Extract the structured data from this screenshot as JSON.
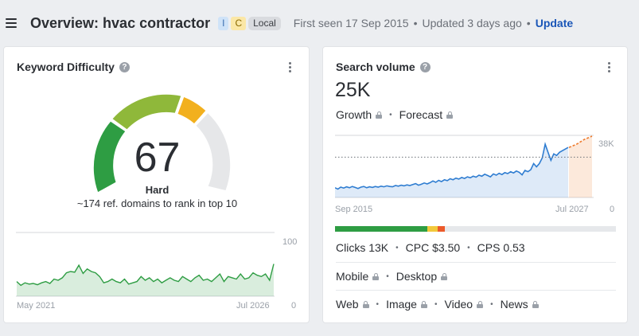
{
  "header": {
    "title": "Overview: hvac contractor",
    "badges": [
      "I",
      "C",
      "Local"
    ],
    "first_seen": "First seen 17 Sep 2015",
    "updated": "Updated 3 days ago",
    "update_label": "Update"
  },
  "kd_card": {
    "title": "Keyword Difficulty",
    "value": "67",
    "rating": "Hard",
    "subtitle": "~174 ref. domains to rank in top 10",
    "gauge_fraction": 0.67,
    "colors": [
      "#2e9d43",
      "#8fb83a",
      "#f2b01e",
      "#e6e7e9"
    ]
  },
  "sv_card": {
    "title": "Search volume",
    "value": "25K",
    "growth_label": "Growth",
    "forecast_label": "Forecast",
    "metrics": [
      "Clicks 13K",
      "CPC $3.50",
      "CPS 0.53"
    ],
    "devices": [
      "Mobile",
      "Desktop"
    ],
    "serp_types": [
      "Web",
      "Image",
      "Video",
      "News"
    ],
    "clicks_bar": [
      {
        "color": "#2e9d43",
        "fraction": 0.33
      },
      {
        "color": "#f2c93b",
        "fraction": 0.035
      },
      {
        "color": "#ec5a2a",
        "fraction": 0.025
      },
      {
        "color": "#e6e8eb",
        "fraction": 0.61
      }
    ]
  },
  "chart_data": [
    {
      "type": "area",
      "x_start": "May 2021",
      "x_end": "Jul 2026",
      "ylim": [
        0,
        100
      ],
      "y_tick_labels": [
        "100",
        "0"
      ],
      "x_tick_labels": [
        "May 2021",
        "Jul 2026"
      ],
      "color": "#2e9d43",
      "values": [
        22,
        16,
        20,
        18,
        19,
        17,
        20,
        22,
        19,
        26,
        24,
        28,
        36,
        38,
        37,
        48,
        35,
        42,
        38,
        36,
        30,
        20,
        22,
        26,
        22,
        20,
        26,
        18,
        20,
        22,
        30,
        24,
        28,
        22,
        26,
        20,
        24,
        28,
        24,
        22,
        30,
        26,
        22,
        28,
        32,
        24,
        26,
        22,
        28,
        34,
        22,
        30,
        28,
        26,
        34,
        26,
        28,
        36,
        32,
        30,
        34,
        24,
        50
      ]
    },
    {
      "type": "area",
      "x_start": "Sep 2015",
      "x_end": "Jul 2027",
      "ylim": [
        0,
        38000
      ],
      "y_tick_labels": [
        "38K",
        "0"
      ],
      "x_tick_labels": [
        "Sep 2015",
        "Jul 2027"
      ],
      "color": "#2f7dd1",
      "reference_line_value": 25000,
      "values": [
        6000,
        5200,
        6400,
        5800,
        6600,
        6000,
        6800,
        6200,
        5600,
        6400,
        6800,
        6000,
        6600,
        6200,
        6800,
        6400,
        7000,
        6600,
        7200,
        6800,
        6600,
        7400,
        7000,
        7600,
        7200,
        7800,
        7400,
        8000,
        8600,
        7600,
        8200,
        9000,
        8400,
        9200,
        10200,
        9400,
        10600,
        9800,
        11000,
        10400,
        11600,
        11000,
        12000,
        11400,
        12400,
        11800,
        12800,
        12200,
        13200,
        12600,
        13800,
        13200,
        14400,
        13600,
        12800,
        14600,
        13800,
        15000,
        14200,
        15400,
        14800,
        16000,
        15200,
        16400,
        15600,
        14000,
        16800,
        16000,
        17200,
        21000,
        19000,
        21000,
        24500,
        33000,
        28000,
        23000,
        27000,
        26000,
        28000,
        29000,
        30000,
        31000
      ],
      "forecast_values": [
        31000,
        33000,
        36000,
        38000
      ]
    }
  ]
}
